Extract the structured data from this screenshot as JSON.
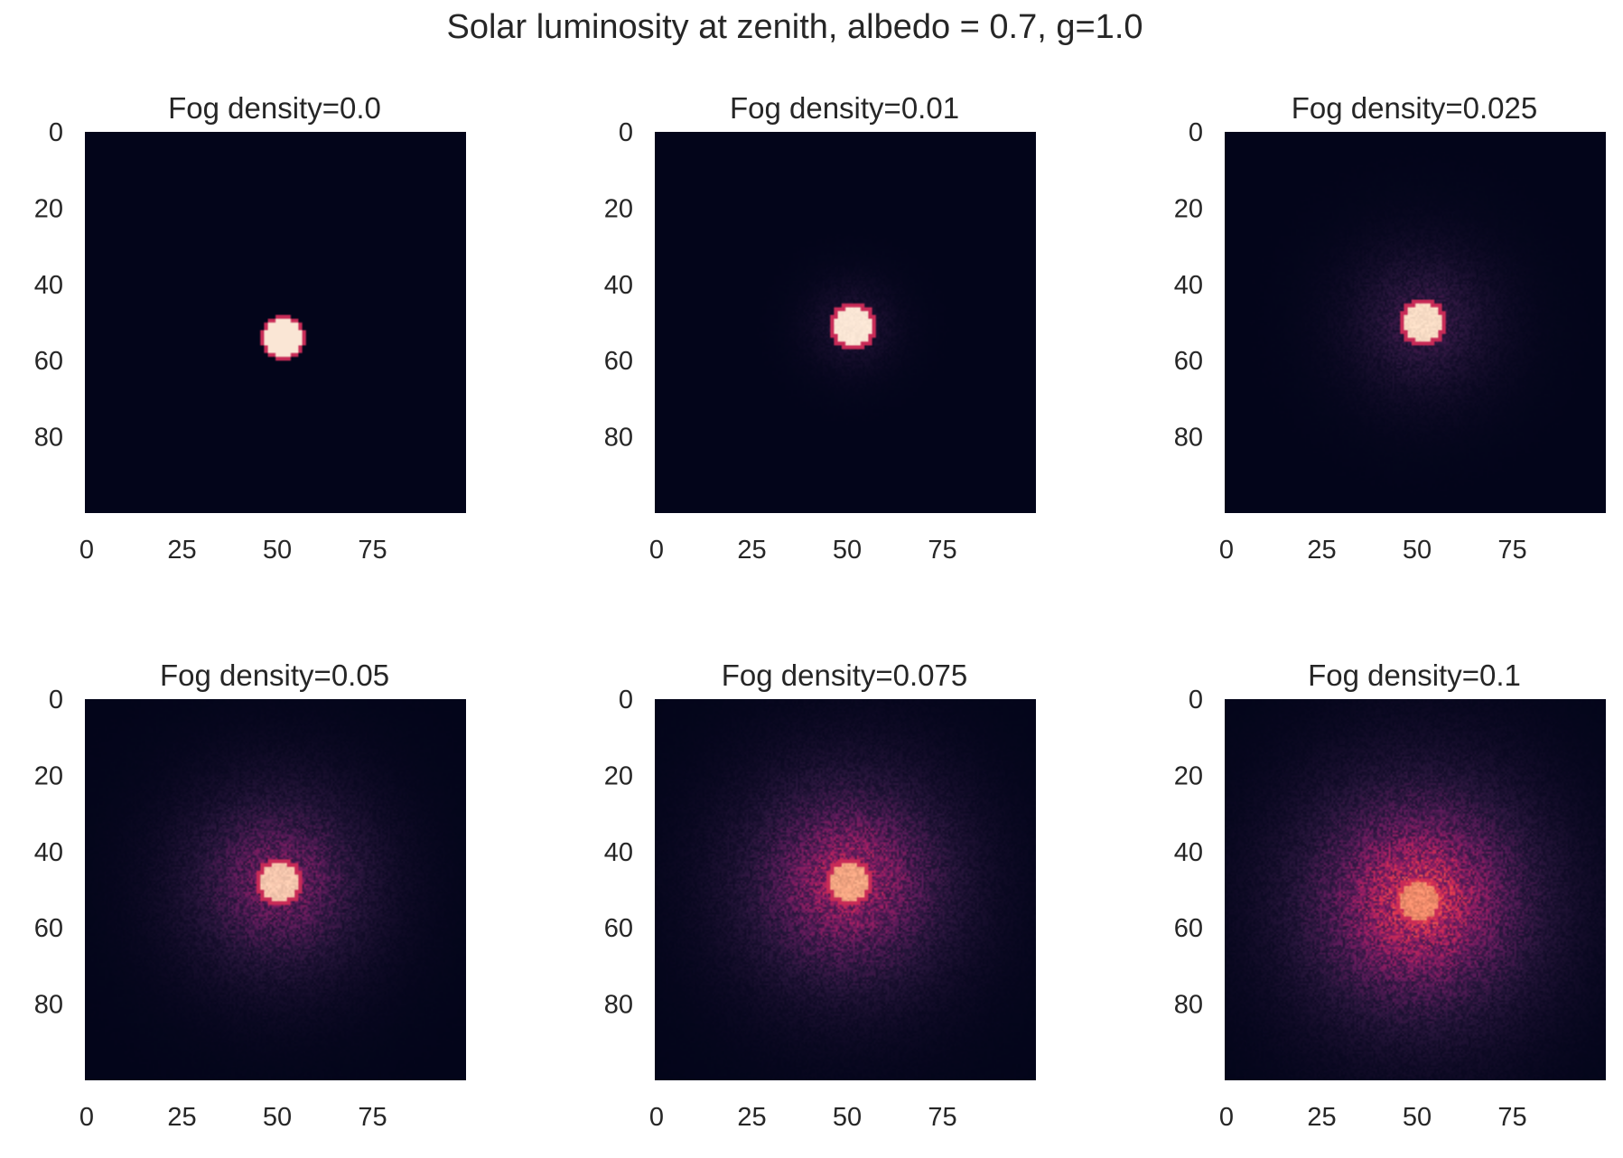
{
  "figure": {
    "title": "Solar luminosity at zenith, albedo = 0.7, g=1.0"
  },
  "chart_data": [
    {
      "type": "heatmap",
      "title": "Fog density=0.0",
      "grid_size": [
        100,
        100
      ],
      "x_ticks": [
        "0",
        "25",
        "50",
        "75"
      ],
      "y_ticks": [
        "0",
        "20",
        "40",
        "60",
        "80"
      ],
      "xlim": [
        0,
        100
      ],
      "ylim": [
        100,
        0
      ],
      "colormap": "rocket",
      "background_color": "#03051a",
      "spot": {
        "x": 52,
        "y": 54,
        "radius": 5
      },
      "peak_color": "#fae6d5",
      "halo_radius": 0,
      "halo_intensity": 0.0,
      "noise": 0.0
    },
    {
      "type": "heatmap",
      "title": "Fog density=0.01",
      "grid_size": [
        100,
        100
      ],
      "x_ticks": [
        "0",
        "25",
        "50",
        "75"
      ],
      "y_ticks": [
        "0",
        "20",
        "40",
        "60",
        "80"
      ],
      "xlim": [
        0,
        100
      ],
      "ylim": [
        100,
        0
      ],
      "colormap": "rocket",
      "background_color": "#03051a",
      "spot": {
        "x": 52,
        "y": 51,
        "radius": 5
      },
      "peak_color": "#fae6d5",
      "halo_radius": 8,
      "halo_intensity": 0.08,
      "noise": 0.02
    },
    {
      "type": "heatmap",
      "title": "Fog density=0.025",
      "grid_size": [
        100,
        100
      ],
      "x_ticks": [
        "0",
        "25",
        "50",
        "75"
      ],
      "y_ticks": [
        "0",
        "20",
        "40",
        "60",
        "80"
      ],
      "xlim": [
        0,
        100
      ],
      "ylim": [
        100,
        0
      ],
      "colormap": "rocket",
      "background_color": "#03051a",
      "spot": {
        "x": 52,
        "y": 50,
        "radius": 5
      },
      "peak_color": "#f8dcc5",
      "halo_radius": 14,
      "halo_intensity": 0.16,
      "noise": 0.04
    },
    {
      "type": "heatmap",
      "title": "Fog density=0.05",
      "grid_size": [
        100,
        100
      ],
      "x_ticks": [
        "0",
        "25",
        "50",
        "75"
      ],
      "y_ticks": [
        "0",
        "20",
        "40",
        "60",
        "80"
      ],
      "xlim": [
        0,
        100
      ],
      "ylim": [
        100,
        0
      ],
      "colormap": "rocket",
      "background_color": "#03051a",
      "spot": {
        "x": 51,
        "y": 48,
        "radius": 5
      },
      "peak_color": "#f6c7ae",
      "halo_radius": 18,
      "halo_intensity": 0.3,
      "noise": 0.06
    },
    {
      "type": "heatmap",
      "title": "Fog density=0.075",
      "grid_size": [
        100,
        100
      ],
      "x_ticks": [
        "0",
        "25",
        "50",
        "75"
      ],
      "y_ticks": [
        "0",
        "20",
        "40",
        "60",
        "80"
      ],
      "xlim": [
        0,
        100
      ],
      "ylim": [
        100,
        0
      ],
      "colormap": "rocket",
      "background_color": "#03051a",
      "spot": {
        "x": 51,
        "y": 48,
        "radius": 5
      },
      "peak_color": "#f4a582",
      "halo_radius": 20,
      "halo_intensity": 0.4,
      "noise": 0.09
    },
    {
      "type": "heatmap",
      "title": "Fog density=0.1",
      "grid_size": [
        100,
        100
      ],
      "x_ticks": [
        "0",
        "25",
        "50",
        "75"
      ],
      "y_ticks": [
        "0",
        "20",
        "40",
        "60",
        "80"
      ],
      "xlim": [
        0,
        100
      ],
      "ylim": [
        100,
        0
      ],
      "colormap": "rocket",
      "background_color": "#03051a",
      "spot": {
        "x": 51,
        "y": 53,
        "radius": 5
      },
      "peak_color": "#f08a6a",
      "halo_radius": 22,
      "halo_intensity": 0.5,
      "noise": 0.12
    }
  ]
}
